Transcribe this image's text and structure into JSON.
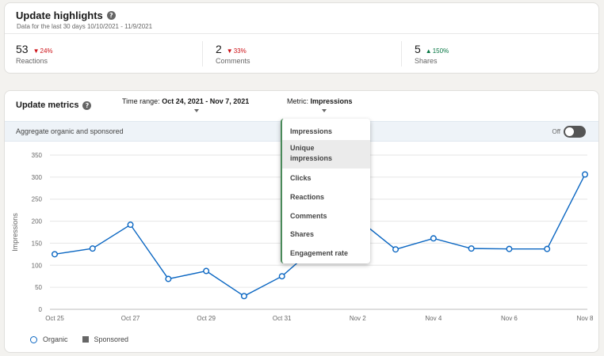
{
  "highlights": {
    "title": "Update highlights",
    "subtitle": "Data for the last 30 days 10/10/2021 - 11/9/2021",
    "stats": [
      {
        "value": "53",
        "delta": "24%",
        "direction": "down",
        "label": "Reactions"
      },
      {
        "value": "2",
        "delta": "33%",
        "direction": "down",
        "label": "Comments"
      },
      {
        "value": "5",
        "delta": "150%",
        "direction": "up",
        "label": "Shares"
      }
    ]
  },
  "metrics": {
    "title": "Update metrics",
    "time_range_label": "Time range:",
    "time_range_value": "Oct 24, 2021 - Nov 7, 2021",
    "metric_label": "Metric:",
    "metric_value": "Impressions",
    "aggregate_label": "Aggregate organic and sponsored",
    "toggle_label": "Off",
    "toggle_state": "off"
  },
  "dropdown": {
    "items": [
      "Impressions",
      "Unique impressions",
      "Clicks",
      "Reactions",
      "Comments",
      "Shares",
      "Engagement rate"
    ],
    "hovered": "Unique impressions"
  },
  "colors": {
    "organic": "#0a66c2",
    "sponsored": "#666666",
    "down": "#cc1016",
    "up": "#057642"
  },
  "legend": {
    "organic": "Organic",
    "sponsored": "Sponsored"
  },
  "chart_data": {
    "type": "line",
    "ylabel": "Impressions",
    "xlabel": "",
    "ylim": [
      0,
      350
    ],
    "yticks": [
      0,
      50,
      100,
      150,
      200,
      250,
      300,
      350
    ],
    "x": [
      "Oct 25",
      "Oct 26",
      "Oct 27",
      "Oct 28",
      "Oct 29",
      "Oct 30",
      "Oct 31",
      "Nov 1",
      "Nov 2",
      "Nov 3",
      "Nov 4",
      "Nov 5",
      "Nov 6",
      "Nov 7",
      "Nov 8"
    ],
    "xtick_labels": [
      "Oct 25",
      "",
      "Oct 27",
      "",
      "Oct 29",
      "",
      "Oct 31",
      "",
      "Nov 2",
      "",
      "Nov 4",
      "",
      "Nov 6",
      "",
      "Nov 8"
    ],
    "series": [
      {
        "name": "Organic",
        "values": [
          125,
          138,
          192,
          69,
          87,
          30,
          75,
          150,
          205,
          136,
          161,
          138,
          137,
          137,
          306
        ]
      }
    ],
    "grid": true,
    "legend_position": "bottom-left"
  }
}
